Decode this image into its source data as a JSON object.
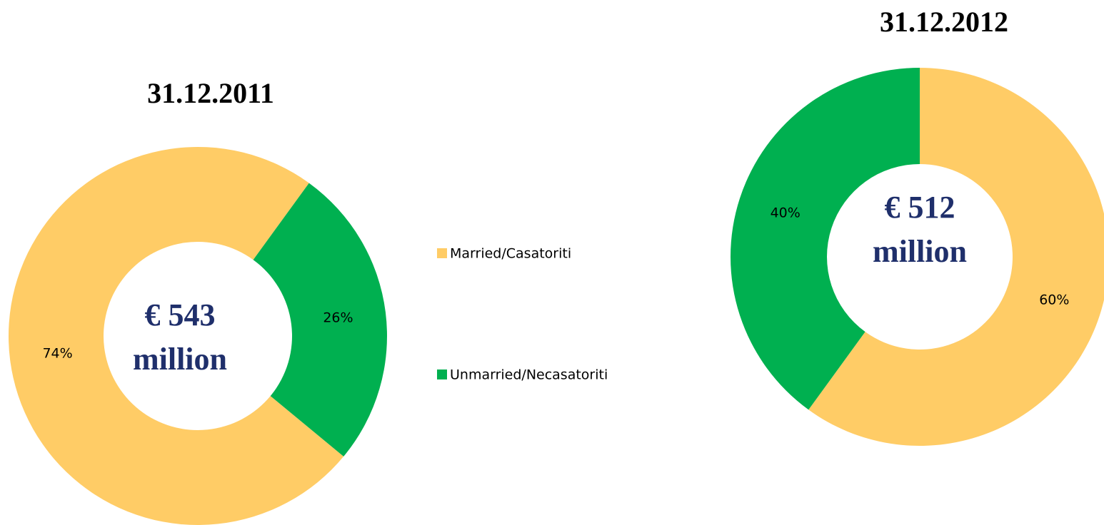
{
  "chart_data": [
    {
      "type": "pie",
      "title": "31.12.2011",
      "categories": [
        "Married/Casatoriti",
        "Unmarried/Necasatoriti"
      ],
      "values": [
        74,
        26
      ],
      "value_labels": [
        "74%",
        "26%"
      ],
      "colors": [
        "#ffcc66",
        "#00b050"
      ],
      "center_label": [
        "€ 543",
        "million"
      ]
    },
    {
      "type": "pie",
      "title": "31.12.2012",
      "categories": [
        "Married/Casatoriti",
        "Unmarried/Necasatoriti"
      ],
      "values": [
        60,
        40
      ],
      "value_labels": [
        "60%",
        "40%"
      ],
      "colors": [
        "#ffcc66",
        "#00b050"
      ],
      "center_label": [
        "€ 512",
        "million"
      ]
    }
  ]
}
